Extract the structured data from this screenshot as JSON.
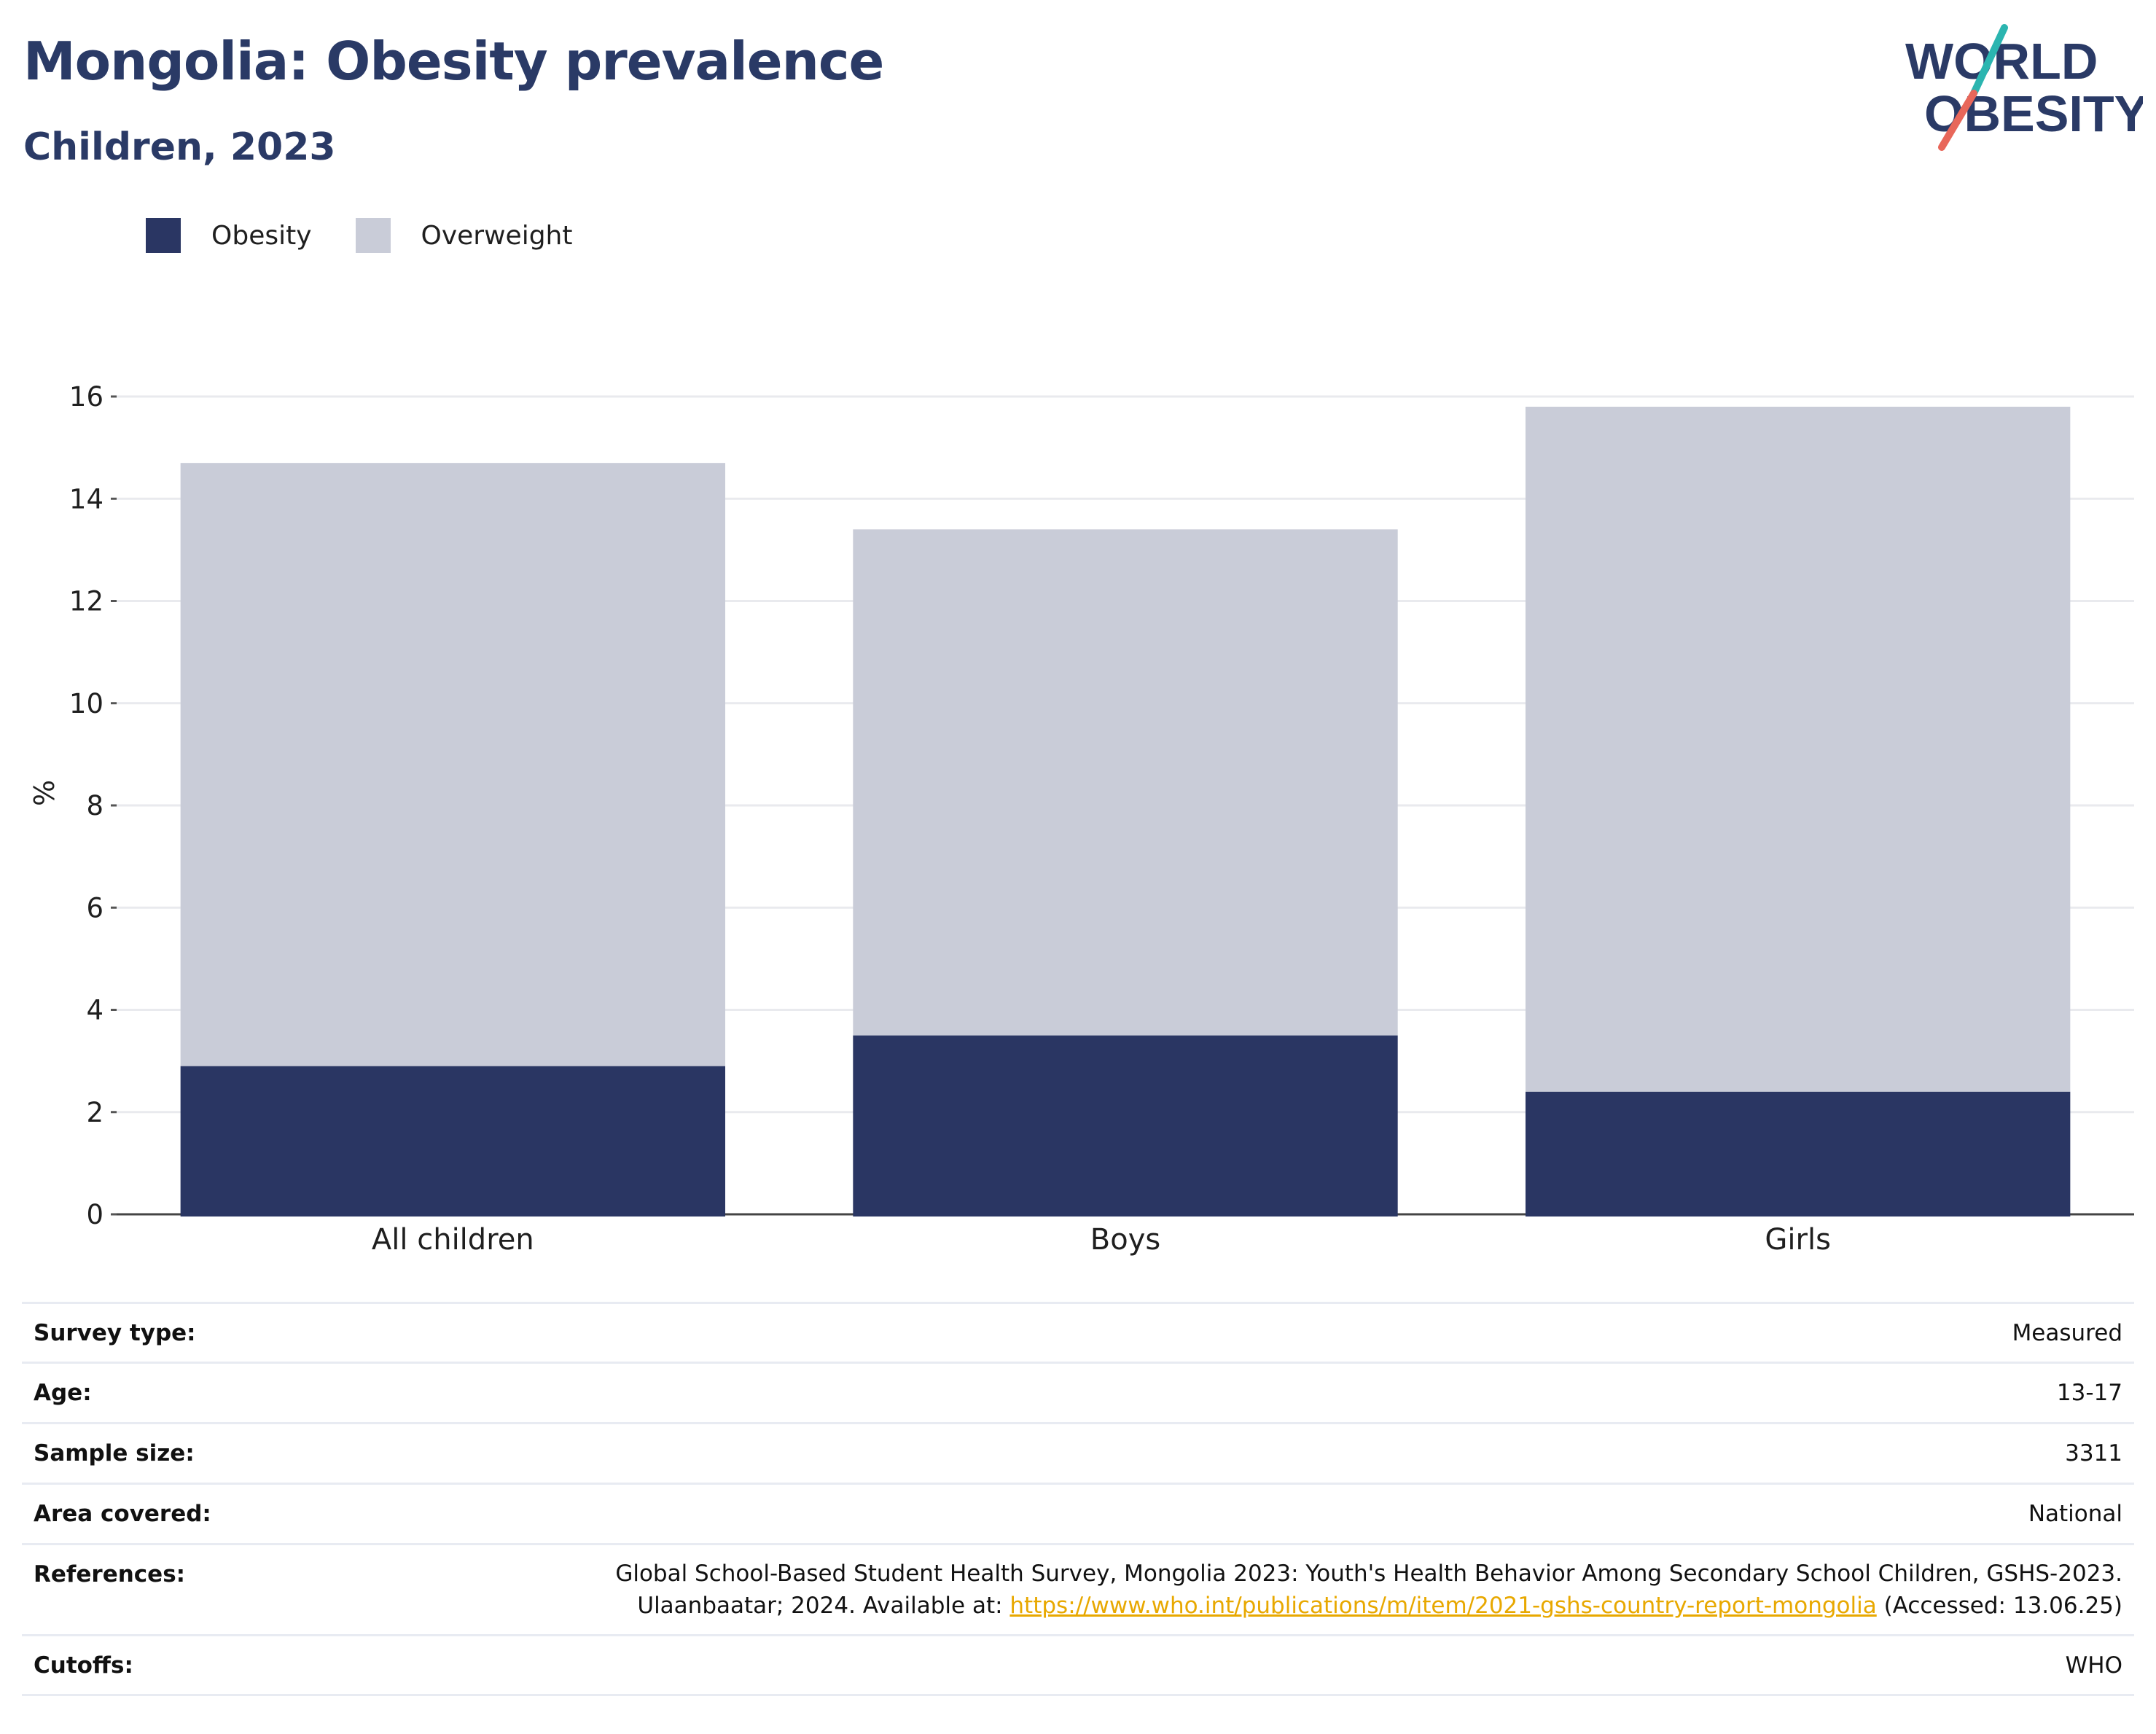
{
  "header": {
    "title": "Mongolia: Obesity prevalence",
    "subtitle": "Children, 2023"
  },
  "logo": {
    "line1": "WORLD",
    "line2": "OBESITY",
    "colors": {
      "text": "#2a3a66",
      "slash_top": "#2bb5b0",
      "slash_bottom": "#e8675a"
    }
  },
  "legend": [
    {
      "label": "Obesity",
      "color": "#2a3663"
    },
    {
      "label": "Overweight",
      "color": "#c9ccd8"
    }
  ],
  "chart_data": {
    "type": "bar",
    "stacked": true,
    "categories": [
      "All children",
      "Boys",
      "Girls"
    ],
    "series": [
      {
        "name": "Obesity",
        "values": [
          2.9,
          3.5,
          2.4
        ],
        "color": "#2a3663"
      },
      {
        "name": "Overweight",
        "values": [
          11.8,
          9.9,
          13.4
        ],
        "color": "#c9ccd8"
      }
    ],
    "ylabel": "%",
    "ylim": [
      0,
      16
    ],
    "yticks": [
      0,
      2,
      4,
      6,
      8,
      10,
      12,
      14,
      16
    ],
    "grid": true
  },
  "info": {
    "rows": [
      {
        "key": "Survey type:",
        "value": "Measured"
      },
      {
        "key": "Age:",
        "value": "13-17"
      },
      {
        "key": "Sample size:",
        "value": "3311"
      },
      {
        "key": "Area covered:",
        "value": "National"
      },
      {
        "key": "References:",
        "value_line1": "Global School-Based Student Health Survey, Mongolia 2023: Youth's Health Behavior Among Secondary School Children, GSHS-2023.",
        "value_line2_before": "Ulaanbaatar; 2024. Available at: ",
        "link_text": "https://www.who.int/publications/m/item/2021-gshs-country-report-mongolia",
        "value_line2_after": " (Accessed: 13.06.25)"
      },
      {
        "key": "Cutoffs:",
        "value": "WHO"
      }
    ]
  }
}
